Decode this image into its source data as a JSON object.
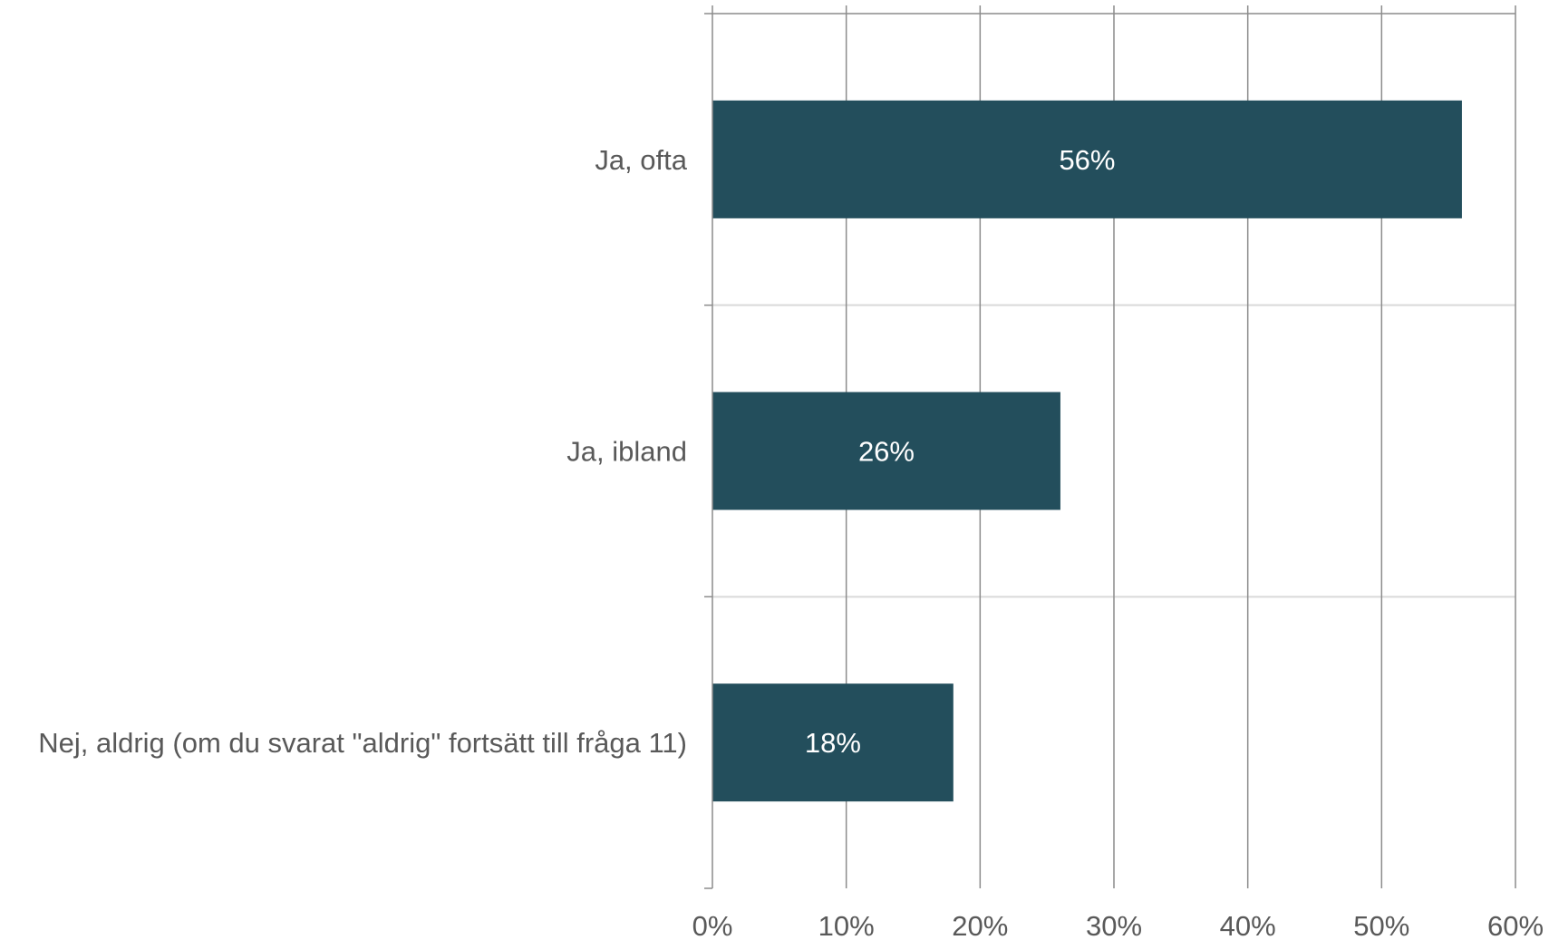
{
  "chart_data": {
    "type": "bar",
    "orientation": "horizontal",
    "title": "",
    "xlabel": "",
    "ylabel": "",
    "categories": [
      "Ja, ofta",
      "Ja, ibland",
      "Nej, aldrig (om du svarat \"aldrig\" fortsätt till fråga 11)"
    ],
    "values": [
      56,
      26,
      18
    ],
    "value_labels": [
      "56%",
      "26%",
      "18%"
    ],
    "xlim": [
      0,
      60
    ],
    "x_ticks": [
      0,
      10,
      20,
      30,
      40,
      50,
      60
    ],
    "x_tick_labels": [
      "0%",
      "10%",
      "20%",
      "30%",
      "40%",
      "50%",
      "60%"
    ],
    "grid": true,
    "legend": "none",
    "colors": {
      "bar": "#234e5c",
      "gridline": "#8c8c8c",
      "category_separator": "#d9d9d9",
      "axis_text": "#595959",
      "data_label_text": "#ffffff"
    }
  }
}
